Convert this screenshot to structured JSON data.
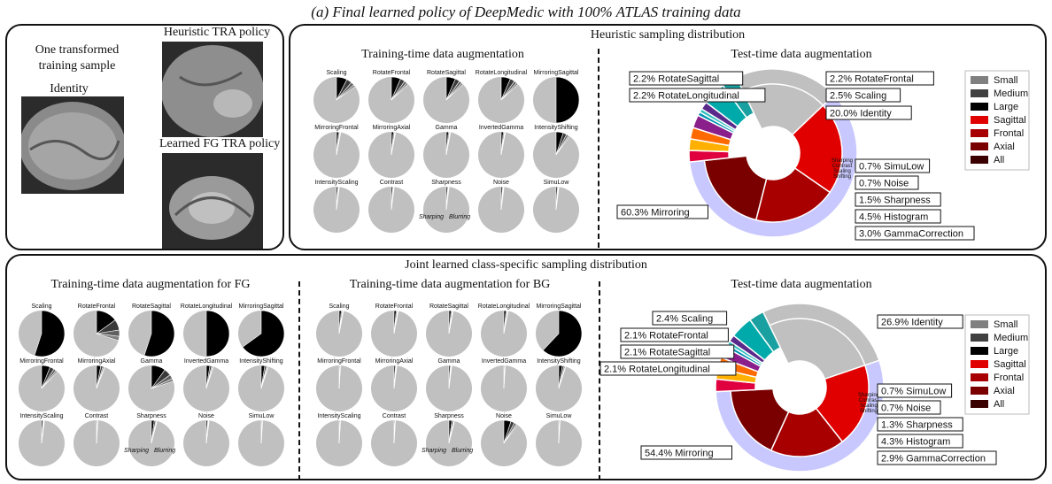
{
  "title": "(a) Final learned policy of DeepMedic with 100% ATLAS training data",
  "left_panel": {
    "one_sample": "One transformed training sample",
    "identity": "Identity",
    "heuristic": "Heuristic TRA policy",
    "learned_fg": "Learned FG TRA policy"
  },
  "top_panel": {
    "title": "Heuristic sampling distribution",
    "train_title": "Training-time data augmentation",
    "test_title": "Test-time data augmentation"
  },
  "bottom_panel": {
    "title": "Joint learned class-specific sampling distribution",
    "fg_title": "Training-time data augmentation for FG",
    "bg_title": "Training-time data augmentation for BG",
    "test_title": "Test-time data augmentation"
  },
  "sharp_labels": {
    "sharping": "Sharping",
    "blurring": "Blurring"
  },
  "pie_names": [
    "Scaling",
    "RotateFrontal",
    "RotateSagittal",
    "RotateLongitudinal",
    "MirroringSagittal",
    "MirroringFrontal",
    "MirroringAxial",
    "Gamma",
    "InvertedGamma",
    "IntensityShifting",
    "IntensityScaling",
    "Contrast",
    "Sharpness",
    "Noise",
    "SimuLow"
  ],
  "legend": [
    {
      "label": "Small",
      "color": "#808080"
    },
    {
      "label": "Medium",
      "color": "#404040"
    },
    {
      "label": "Large",
      "color": "#000000"
    },
    {
      "label": "Sagittal",
      "color": "#e00000"
    },
    {
      "label": "Frontal",
      "color": "#a80000"
    },
    {
      "label": "Axial",
      "color": "#7a0000"
    },
    {
      "label": "All",
      "color": "#3a0000"
    }
  ],
  "chart_data": [
    {
      "type": "pie",
      "title": "Heuristic sampling distribution - Training-time data augmentation",
      "note": "Small multiples; value = share of non-identity (dark) wedge",
      "values": [
        0.15,
        0.13,
        0.13,
        0.13,
        0.5,
        0.03,
        0.03,
        0.03,
        0.03,
        0.1,
        0.02,
        0.02,
        0.02,
        0.02,
        0.02
      ]
    },
    {
      "type": "pie",
      "title": "Heuristic sampling distribution - Test-time data augmentation",
      "slices": [
        {
          "label": "Identity",
          "value": 20.0
        },
        {
          "label": "Mirroring",
          "value": 60.3
        },
        {
          "label": "RotateSagittal",
          "value": 2.2
        },
        {
          "label": "RotateLongitudinal",
          "value": 2.2
        },
        {
          "label": "RotateFrontal",
          "value": 2.2
        },
        {
          "label": "Scaling",
          "value": 2.5
        },
        {
          "label": "SimuLow",
          "value": 0.7
        },
        {
          "label": "Noise",
          "value": 0.7
        },
        {
          "label": "Sharpness",
          "value": 1.5
        },
        {
          "label": "Histogram",
          "value": 4.5
        },
        {
          "label": "GammaCorrection",
          "value": 3.0
        }
      ]
    },
    {
      "type": "pie",
      "title": "Training-time data augmentation for FG",
      "values": [
        0.55,
        0.3,
        0.55,
        0.5,
        0.65,
        0.12,
        0.06,
        0.2,
        0.05,
        0.05,
        0.02,
        0.01,
        0.04,
        0.02,
        0.01
      ]
    },
    {
      "type": "pie",
      "title": "Training-time data augmentation for BG",
      "values": [
        0.03,
        0.03,
        0.03,
        0.03,
        0.62,
        0.01,
        0.02,
        0.02,
        0.01,
        0.05,
        0.01,
        0.01,
        0.04,
        0.1,
        0.01
      ]
    },
    {
      "type": "pie",
      "title": "Joint learned - Test-time data augmentation",
      "slices": [
        {
          "label": "Identity",
          "value": 26.9
        },
        {
          "label": "Mirroring",
          "value": 54.4
        },
        {
          "label": "Scaling",
          "value": 2.4
        },
        {
          "label": "RotateFrontal",
          "value": 2.1
        },
        {
          "label": "RotateSagittal",
          "value": 2.1
        },
        {
          "label": "RotateLongitudinal",
          "value": 2.1
        },
        {
          "label": "SimuLow",
          "value": 0.7
        },
        {
          "label": "Noise",
          "value": 0.7
        },
        {
          "label": "Sharpness",
          "value": 1.3
        },
        {
          "label": "Histogram",
          "value": 4.3
        },
        {
          "label": "GammaCorrection",
          "value": 2.9
        }
      ]
    }
  ],
  "top_labels_left": [
    "2.2% RotateSagittal",
    "2.2% RotateLongitudinal"
  ],
  "top_labels_right": [
    "2.2% RotateFrontal",
    "2.5% Scaling",
    "20.0% Identity",
    "0.7% SimuLow",
    "0.7% Noise",
    "1.5% Sharpness",
    "4.5% Histogram",
    "3.0% GammaCorrection"
  ],
  "top_label_mirroring": "60.3% Mirroring",
  "bottom_labels_left": [
    "2.4% Scaling",
    "2.1% RotateFrontal",
    "2.1% RotateSagittal",
    "2.1% RotateLongitudinal"
  ],
  "bottom_labels_right": [
    "26.9% Identity",
    "0.7% SimuLow",
    "0.7% Noise",
    "1.3% Sharpness",
    "4.3% Histogram",
    "2.9% GammaCorrection"
  ],
  "bottom_label_mirroring": "54.4% Mirroring",
  "donut_inner_labels": [
    "Sharping",
    "Contrast",
    "Scaling",
    "Shifting"
  ]
}
